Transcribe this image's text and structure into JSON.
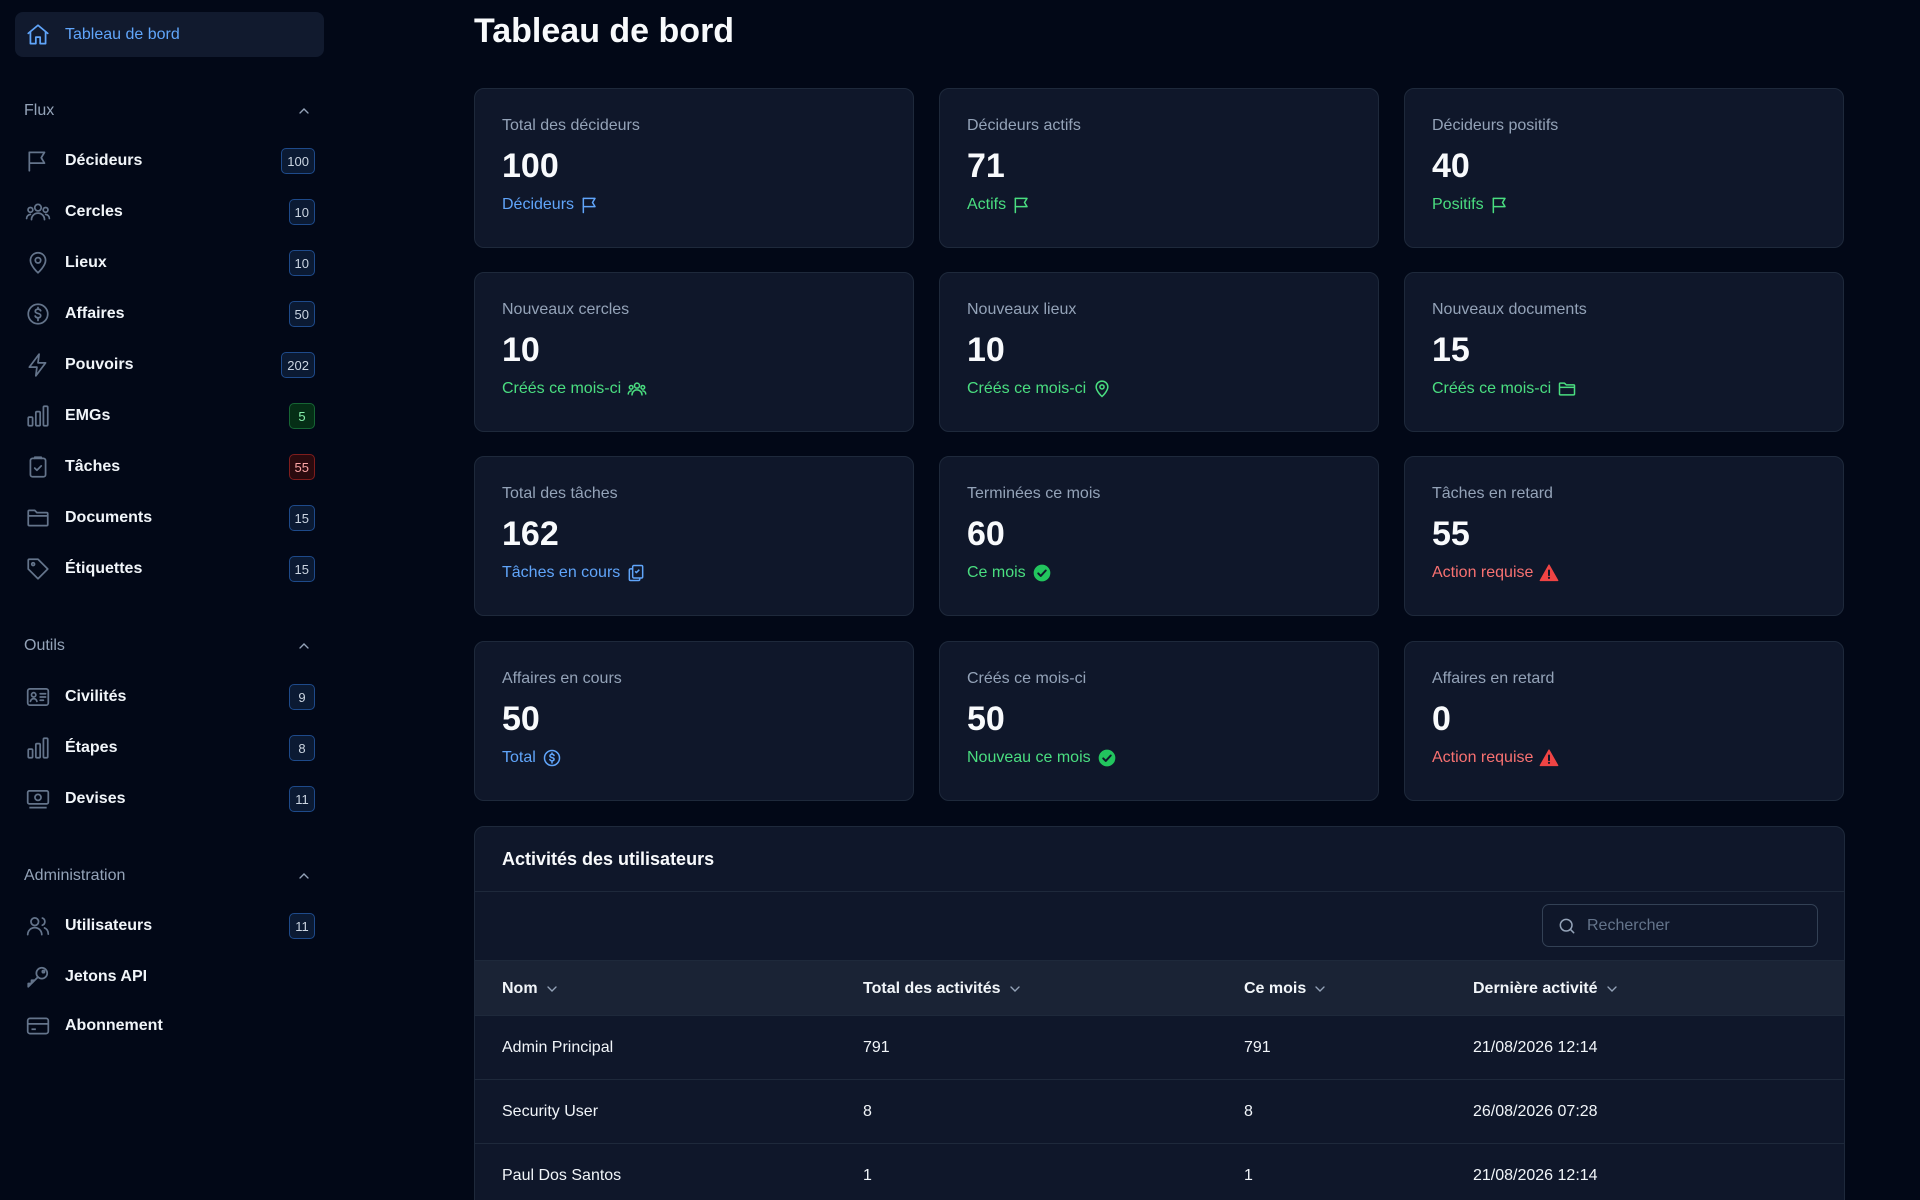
{
  "sidebar": {
    "home": {
      "label": "Tableau de bord"
    },
    "sections": {
      "flux": {
        "title": "Flux"
      },
      "outils": {
        "title": "Outils"
      },
      "admin": {
        "title": "Administration"
      }
    },
    "flux_items": [
      {
        "label": "Décideurs",
        "count": "100",
        "icon": "flag-icon"
      },
      {
        "label": "Cercles",
        "count": "10",
        "icon": "users-icon"
      },
      {
        "label": "Lieux",
        "count": "10",
        "icon": "map-pin-icon"
      },
      {
        "label": "Affaires",
        "count": "50",
        "icon": "dollar-circle-icon"
      },
      {
        "label": "Pouvoirs",
        "count": "202",
        "icon": "bolt-icon"
      },
      {
        "label": "EMGs",
        "count": "5",
        "icon": "bar-chart-icon"
      },
      {
        "label": "Tâches",
        "count": "55",
        "icon": "clipboard-check-icon"
      },
      {
        "label": "Documents",
        "count": "15",
        "icon": "folder-icon"
      },
      {
        "label": "Étiquettes",
        "count": "15",
        "icon": "tag-icon"
      }
    ],
    "outils_items": [
      {
        "label": "Civilités",
        "count": "9",
        "icon": "id-card-icon"
      },
      {
        "label": "Étapes",
        "count": "8",
        "icon": "bar-chart-icon"
      },
      {
        "label": "Devises",
        "count": "11",
        "icon": "banknote-icon"
      }
    ],
    "admin_items": [
      {
        "label": "Utilisateurs",
        "count": "11",
        "icon": "users-icon"
      },
      {
        "label": "Jetons API",
        "icon": "key-icon"
      },
      {
        "label": "Abonnement",
        "icon": "credit-card-icon"
      }
    ]
  },
  "main": {
    "title": "Tableau de bord",
    "cards": [
      {
        "label": "Total des décideurs",
        "value": "100",
        "sub": "Décideurs",
        "color": "#60a5fa",
        "icon": "flag-icon"
      },
      {
        "label": "Décideurs actifs",
        "value": "71",
        "sub": "Actifs",
        "color": "#4ade80",
        "icon": "flag-icon"
      },
      {
        "label": "Décideurs positifs",
        "value": "40",
        "sub": "Positifs",
        "color": "#4ade80",
        "icon": "flag-icon"
      },
      {
        "label": "Nouveaux cercles",
        "value": "10",
        "sub": "Créés ce mois-ci",
        "color": "#4ade80",
        "icon": "users-icon"
      },
      {
        "label": "Nouveaux lieux",
        "value": "10",
        "sub": "Créés ce mois-ci",
        "color": "#4ade80",
        "icon": "map-pin-icon"
      },
      {
        "label": "Nouveaux documents",
        "value": "15",
        "sub": "Créés ce mois-ci",
        "color": "#4ade80",
        "icon": "folder-icon"
      },
      {
        "label": "Total des tâches",
        "value": "162",
        "sub": "Tâches en cours",
        "color": "#60a5fa",
        "icon": "clipboard-copy-icon"
      },
      {
        "label": "Terminées ce mois",
        "value": "60",
        "sub": "Ce mois",
        "color": "#4ade80",
        "icon": "check-circle-icon"
      },
      {
        "label": "Tâches en retard",
        "value": "55",
        "sub": "Action requise",
        "color": "#f87171",
        "icon": "warning-icon"
      },
      {
        "label": "Affaires en cours",
        "value": "50",
        "sub": "Total",
        "color": "#60a5fa",
        "icon": "dollar-circle-icon"
      },
      {
        "label": "Créés ce mois-ci",
        "value": "50",
        "sub": "Nouveau ce mois",
        "color": "#4ade80",
        "icon": "check-circle-icon"
      },
      {
        "label": "Affaires en retard",
        "value": "0",
        "sub": "Action requise",
        "color": "#f87171",
        "icon": "warning-icon"
      }
    ],
    "activity": {
      "title": "Activités des utilisateurs",
      "search_placeholder": "Rechercher",
      "columns": [
        "Nom",
        "Total des activités",
        "Ce mois",
        "Dernière activité"
      ],
      "rows": [
        [
          "Admin Principal",
          "791",
          "791",
          "21/08/2026 12:14"
        ],
        [
          "Security User",
          "8",
          "8",
          "26/08/2026 07:28"
        ],
        [
          "Paul Dos Santos",
          "1",
          "1",
          "21/08/2026 12:14"
        ]
      ]
    }
  }
}
